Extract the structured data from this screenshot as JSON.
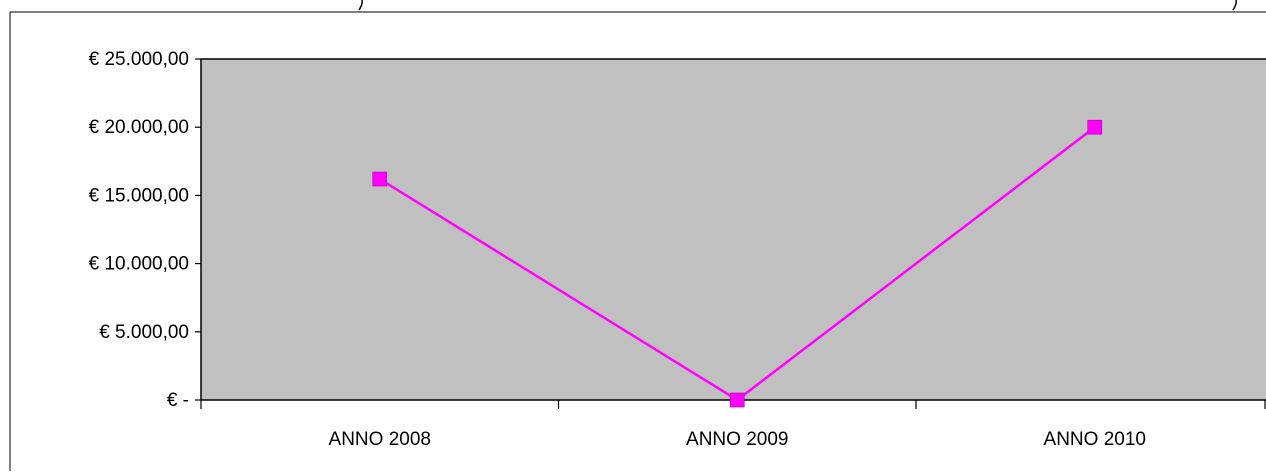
{
  "chart_data": {
    "type": "line",
    "categories": [
      "ANNO 2008",
      "ANNO 2009",
      "ANNO 2010"
    ],
    "series": [
      {
        "values": [
          16200,
          0,
          20000
        ]
      }
    ],
    "ylim": [
      0,
      25000
    ],
    "yticks": [
      0,
      5000,
      10000,
      15000,
      20000,
      25000
    ],
    "ytick_labels": [
      "€ -",
      "€ 5.000,00",
      "€ 10.000,00",
      "€ 15.000,00",
      "€ 20.000,00",
      "€ 25.000,00"
    ],
    "grid": false,
    "legend": "none"
  },
  "colors": {
    "plot_background": "#c0c0c0",
    "series_line": "#ff00ff",
    "axis": "#000000"
  }
}
